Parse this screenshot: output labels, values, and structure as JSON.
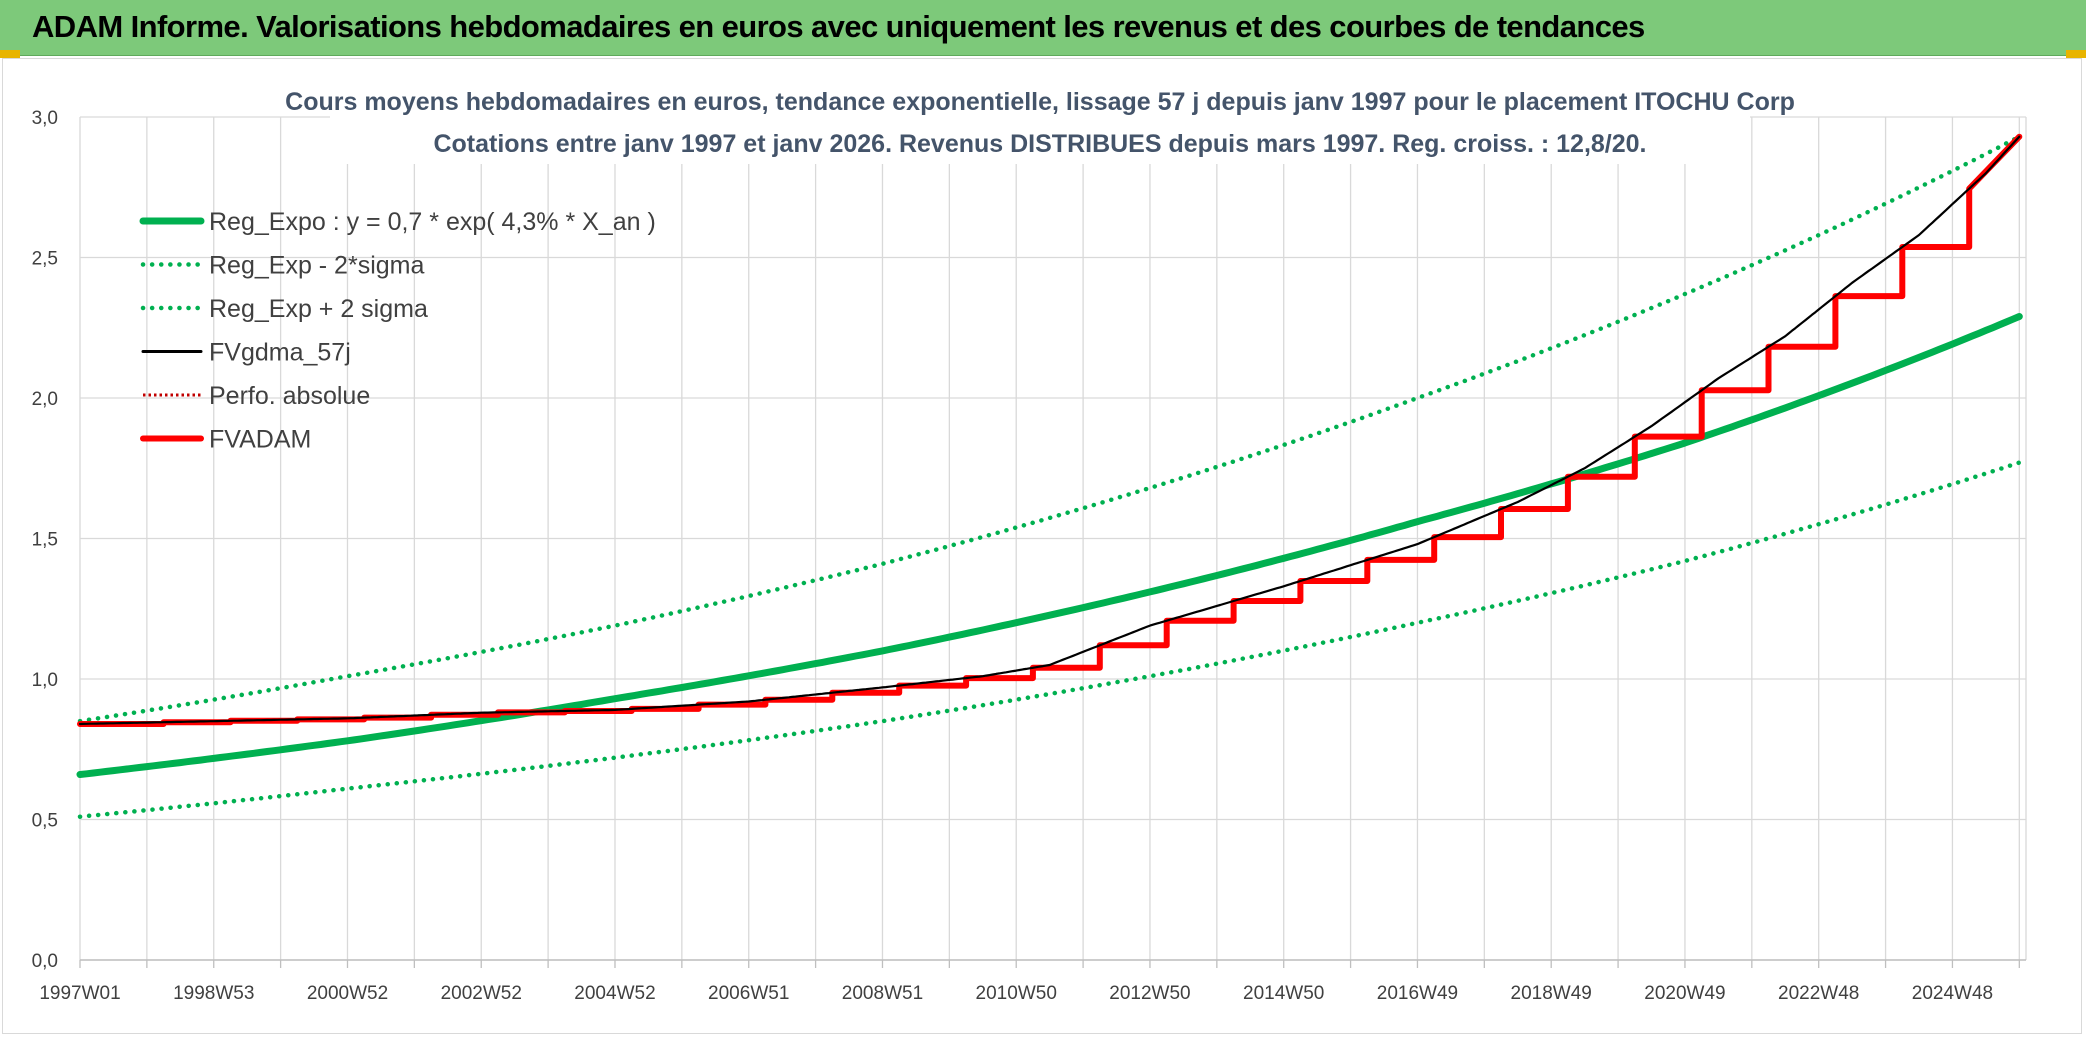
{
  "banner": {
    "title": "ADAM Informe. Valorisations hebdomadaires en euros avec uniquement les revenus et des courbes de tendances"
  },
  "colors": {
    "banner": "#7dc97a",
    "trend": "#00b050",
    "fvgdma": "#000000",
    "adam": "#ff0000",
    "perfo": "#c00000"
  },
  "chart_data": {
    "type": "line",
    "title": "Cours moyens hebdomadaires en euros, tendance exponentielle, lissage 57 j depuis janv 1997 pour le placement ITOCHU Corp",
    "subtitle": "Cotations entre janv 1997 et janv 2026. Revenus DISTRIBUES depuis mars 1997. Reg. croiss. : 12,8/20.",
    "xlabel": "",
    "ylabel": "",
    "ylim": [
      0,
      3
    ],
    "y_ticks": [
      "0,0",
      "0,5",
      "1,0",
      "1,5",
      "2,0",
      "2,5",
      "3,0"
    ],
    "x_tick_labels": [
      "1997W01",
      "1998W53",
      "2000W52",
      "2002W52",
      "2004W52",
      "2006W51",
      "2008W51",
      "2010W50",
      "2012W50",
      "2014W50",
      "2016W49",
      "2018W49",
      "2020W49",
      "2022W48",
      "2024W48"
    ],
    "grid": true,
    "legend_position": "top-left",
    "series": [
      {
        "name": "Reg_Expo : y = 0,7 * exp( 4,3% *  X_an )",
        "style": "solid-thick",
        "color": "#00b050",
        "x": [
          1997,
          2001,
          2005,
          2009,
          2013,
          2017,
          2021,
          2026
        ],
        "y": [
          0.66,
          0.78,
          0.93,
          1.1,
          1.31,
          1.56,
          1.84,
          2.29
        ]
      },
      {
        "name": "Reg_Exp - 2*sigma",
        "style": "dotted",
        "color": "#00b050",
        "x": [
          1997,
          2001,
          2005,
          2009,
          2013,
          2017,
          2021,
          2026
        ],
        "y": [
          0.51,
          0.61,
          0.72,
          0.85,
          1.01,
          1.2,
          1.42,
          1.77
        ]
      },
      {
        "name": "Reg_Exp + 2 sigma",
        "style": "dotted",
        "color": "#00b050",
        "x": [
          1997,
          2001,
          2005,
          2009,
          2013,
          2017,
          2021,
          2026
        ],
        "y": [
          0.85,
          1.01,
          1.19,
          1.41,
          1.68,
          2.0,
          2.37,
          2.93
        ]
      },
      {
        "name": "FVgdma_57j",
        "style": "solid-thin",
        "color": "#000000",
        "x": [
          1997,
          1999,
          2001,
          2003,
          2005,
          2007,
          2009,
          2010.5,
          2011.5,
          2013,
          2015,
          2017,
          2018.5,
          2019.5,
          2020.5,
          2021.5,
          2022.5,
          2023.5,
          2024.5,
          2025.5,
          2026
        ],
        "y": [
          0.84,
          0.85,
          0.86,
          0.88,
          0.89,
          0.92,
          0.97,
          1.01,
          1.05,
          1.19,
          1.33,
          1.48,
          1.63,
          1.75,
          1.9,
          2.07,
          2.22,
          2.41,
          2.58,
          2.8,
          2.93
        ]
      },
      {
        "name": "Perfo. absolue",
        "style": "dotted-thin",
        "color": "#c00000",
        "x": [],
        "y": []
      },
      {
        "name": "FVADAM",
        "style": "solid-thick-stepped",
        "color": "#ff0000",
        "x": [
          1997,
          1999,
          2001,
          2003,
          2005,
          2007,
          2009,
          2010.5,
          2011.5,
          2013,
          2015,
          2017,
          2018.5,
          2019.5,
          2020.5,
          2021.5,
          2022.5,
          2023.5,
          2024.5,
          2025.5,
          2026
        ],
        "y": [
          0.84,
          0.85,
          0.86,
          0.88,
          0.89,
          0.92,
          0.97,
          1.01,
          1.05,
          1.19,
          1.33,
          1.48,
          1.63,
          1.75,
          1.9,
          2.07,
          2.22,
          2.41,
          2.58,
          2.8,
          2.93
        ]
      }
    ]
  }
}
